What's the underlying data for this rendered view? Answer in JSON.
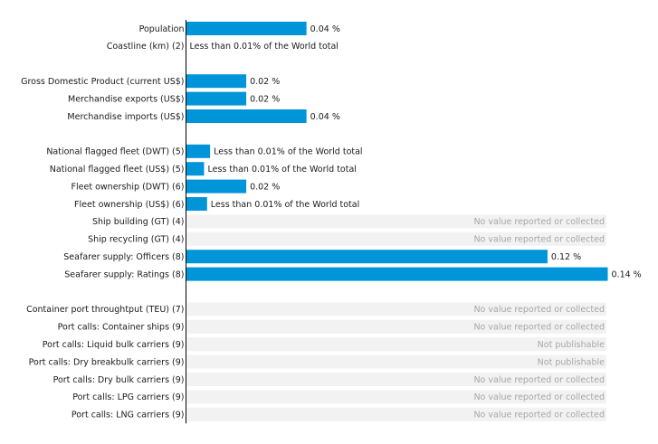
{
  "chart_data": {
    "type": "bar",
    "orientation": "horizontal",
    "title": "",
    "xlabel": "",
    "ylabel": "",
    "unit": "% of the World total",
    "bar_color": "#0095d9",
    "placeholder_color": "#f2f2f2",
    "xlim": [
      0,
      0.14
    ],
    "groups": [
      [
        {
          "label": "Population",
          "value": 0.04,
          "text": "0.04 %"
        },
        {
          "label": "Coastline (km) (2)",
          "value": 0,
          "text": "Less than 0.01% of the World total"
        }
      ],
      [
        {
          "label": "Gross Domestic Product (current US$)",
          "value": 0.02,
          "text": "0.02 %"
        },
        {
          "label": "Merchandise exports (US$)",
          "value": 0.02,
          "text": "0.02 %"
        },
        {
          "label": "Merchandise imports (US$)",
          "value": 0.04,
          "text": "0.04 %"
        }
      ],
      [
        {
          "label": "National flagged fleet (DWT) (5)",
          "value": 0.008,
          "text": "Less than 0.01% of the World total"
        },
        {
          "label": "National flagged fleet (US$) (5)",
          "value": 0.006,
          "text": "Less than 0.01% of the World total"
        },
        {
          "label": "Fleet ownership (DWT) (6)",
          "value": 0.02,
          "text": "0.02 %"
        },
        {
          "label": "Fleet ownership (US$) (6)",
          "value": 0.007,
          "text": "Less than 0.01% of the World total"
        },
        {
          "label": "Ship building (GT) (4)",
          "value": null,
          "text": "No value reported or collected"
        },
        {
          "label": "Ship recycling (GT) (4)",
          "value": null,
          "text": "No value reported or collected"
        },
        {
          "label": "Seafarer supply: Officers (8)",
          "value": 0.12,
          "text": "0.12 %"
        },
        {
          "label": "Seafarer supply: Ratings (8)",
          "value": 0.14,
          "text": "0.14 %"
        }
      ],
      [
        {
          "label": "Container port throughtput (TEU) (7)",
          "value": null,
          "text": "No value reported or collected"
        },
        {
          "label": "Port calls: Container ships (9)",
          "value": null,
          "text": "No value reported or collected"
        },
        {
          "label": "Port calls: Liquid bulk carriers (9)",
          "value": null,
          "text": "Not publishable"
        },
        {
          "label": "Port calls: Dry breakbulk carriers (9)",
          "value": null,
          "text": "Not publishable"
        },
        {
          "label": "Port calls: Dry bulk carriers (9)",
          "value": null,
          "text": "No value reported or collected"
        },
        {
          "label": "Port calls: LPG carriers (9)",
          "value": null,
          "text": "No value reported or collected"
        },
        {
          "label": "Port calls: LNG carriers (9)",
          "value": null,
          "text": "No value reported or collected"
        }
      ]
    ]
  }
}
